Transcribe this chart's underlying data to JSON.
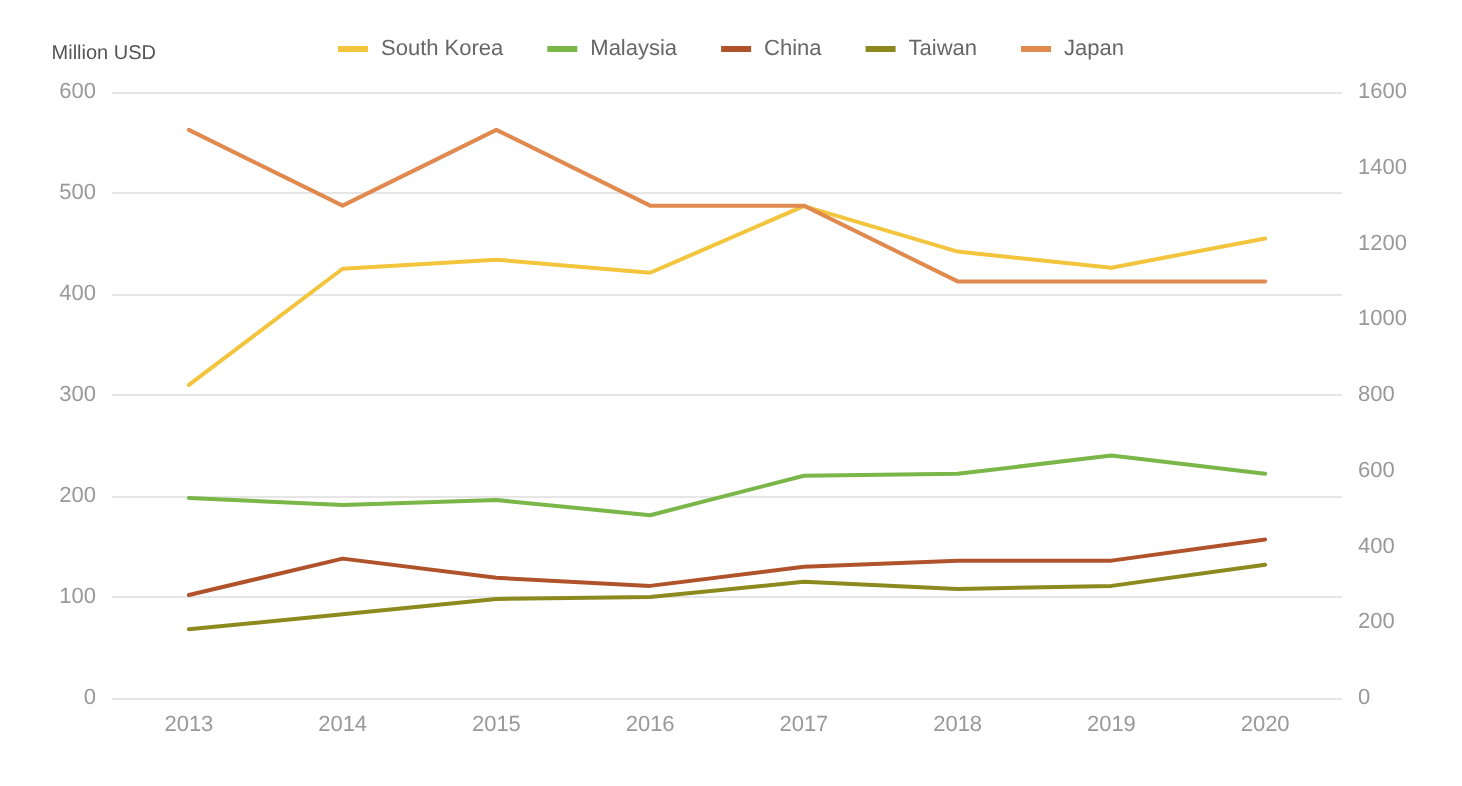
{
  "chart_data": {
    "type": "line",
    "ylabel": "Million USD",
    "categories": [
      "2013",
      "2014",
      "2015",
      "2016",
      "2017",
      "2018",
      "2019",
      "2020"
    ],
    "series": [
      {
        "name": "South Korea",
        "color": "#f2c53d",
        "values": [
          310,
          425,
          434,
          421,
          487,
          442,
          426,
          455
        ]
      },
      {
        "name": "Malaysia",
        "color": "#7ab648",
        "values": [
          198,
          191,
          196,
          181,
          220,
          222,
          240,
          222
        ]
      },
      {
        "name": "China",
        "color": "#b0532b",
        "values": [
          102,
          138,
          119,
          111,
          130,
          136,
          136,
          157
        ]
      },
      {
        "name": "Taiwan",
        "color": "#8c8a1e",
        "values": [
          68,
          83,
          98,
          100,
          115,
          108,
          111,
          132
        ]
      },
      {
        "name": "Japan",
        "color": "#e08a4f",
        "axis": "y2",
        "values": [
          1500,
          1300,
          1500,
          1300,
          1300,
          1100,
          1100,
          1100
        ]
      }
    ],
    "ylim": [
      0,
      600
    ],
    "yticks": [
      0,
      100,
      200,
      300,
      400,
      500,
      600
    ],
    "y2lim": [
      0,
      1600
    ],
    "y2ticks": [
      0,
      200,
      400,
      600,
      800,
      1000,
      1200,
      1400,
      1600
    ],
    "grid": "y",
    "legend": "top",
    "marker": "none",
    "line_style": "solid"
  }
}
